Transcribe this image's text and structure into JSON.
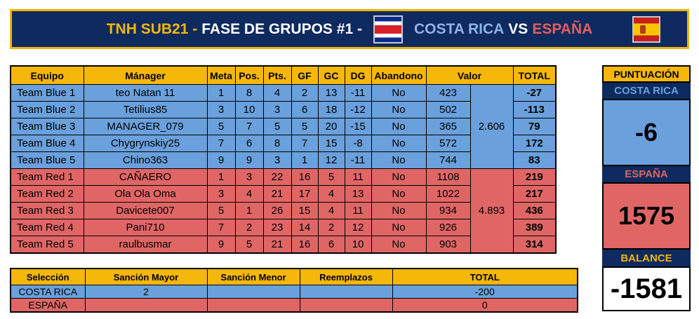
{
  "header": {
    "prefix": "TNH SUB21 -",
    "phase": "FASE DE GRUPOS #1 -",
    "team_a": "COSTA RICA",
    "vs": "VS",
    "team_b": "ESPAÑA",
    "flag_a_icon": "costa-rica-flag-icon",
    "flag_b_icon": "spain-flag-icon"
  },
  "main_table": {
    "headers": [
      "Equipo",
      "Mánager",
      "Meta",
      "Pos.",
      "Pts.",
      "GF",
      "GC",
      "DG",
      "Abandono",
      "Valor",
      "TOTAL"
    ],
    "blue_value_total": "2.606",
    "red_value_total": "4.893",
    "blue_rows": [
      [
        "Team Blue 1",
        "teo Natan 11",
        "1",
        "8",
        "4",
        "2",
        "13",
        "-11",
        "No",
        "423",
        "-27"
      ],
      [
        "Team Blue 2",
        "Tetilius85",
        "3",
        "10",
        "3",
        "6",
        "18",
        "-12",
        "No",
        "502",
        "-113"
      ],
      [
        "Team Blue 3",
        "MANAGER_079",
        "5",
        "7",
        "5",
        "5",
        "20",
        "-15",
        "No",
        "365",
        "79"
      ],
      [
        "Team Blue 4",
        "Chygrynskiy25",
        "7",
        "6",
        "8",
        "7",
        "15",
        "-8",
        "No",
        "572",
        "172"
      ],
      [
        "Team Blue 5",
        "Chino363",
        "9",
        "9",
        "3",
        "1",
        "12",
        "-11",
        "No",
        "744",
        "83"
      ]
    ],
    "red_rows": [
      [
        "Team Red 1",
        "CAÑAERO",
        "1",
        "3",
        "22",
        "16",
        "5",
        "11",
        "No",
        "1108",
        "219"
      ],
      [
        "Team Red 2",
        "Ola Ola Oma",
        "3",
        "4",
        "21",
        "17",
        "4",
        "13",
        "No",
        "1022",
        "217"
      ],
      [
        "Team Red 3",
        "Davicete007",
        "5",
        "1",
        "26",
        "15",
        "4",
        "11",
        "No",
        "934",
        "436"
      ],
      [
        "Team Red 4",
        "Pani710",
        "7",
        "2",
        "23",
        "14",
        "2",
        "12",
        "No",
        "926",
        "389"
      ],
      [
        "Team Red 5",
        "raulbusmar",
        "9",
        "5",
        "21",
        "16",
        "6",
        "10",
        "No",
        "903",
        "314"
      ]
    ]
  },
  "sanctions": {
    "headers": [
      "Selección",
      "Sanción Mayor",
      "Sanción Menor",
      "Reemplazos",
      "TOTAL"
    ],
    "rows": [
      [
        "COSTA RICA",
        "2",
        "",
        "",
        "-200"
      ],
      [
        "ESPAÑA",
        "",
        "",
        "",
        "0"
      ]
    ]
  },
  "score_panel": {
    "title": "PUNTUACIÓN",
    "team_a": "COSTA RICA",
    "score_a": "-6",
    "team_b": "ESPAÑA",
    "score_b": "1575",
    "balance_label": "BALANCE",
    "balance": "-1581"
  }
}
